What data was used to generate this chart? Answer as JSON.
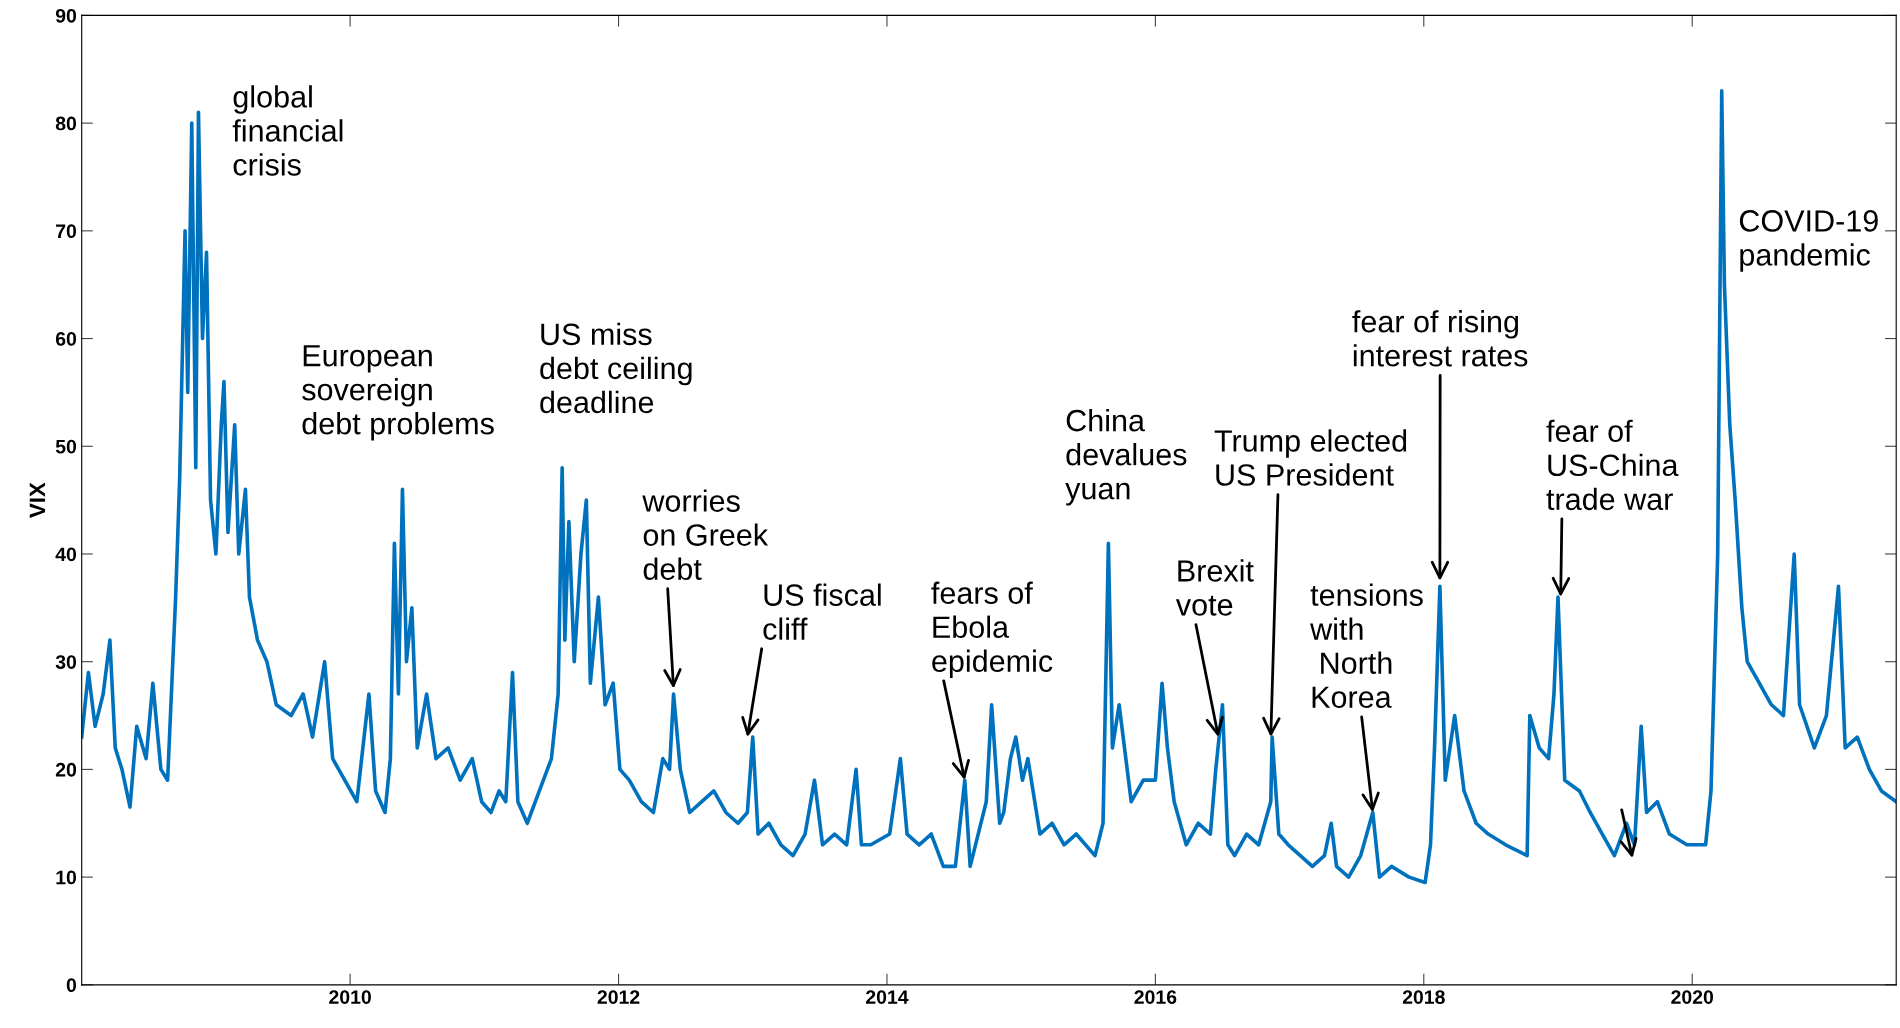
{
  "chart_data": {
    "type": "line",
    "ylabel": "VIX",
    "x": [
      2008.0,
      2008.05,
      2008.1,
      2008.16,
      2008.21,
      2008.25,
      2008.3,
      2008.36,
      2008.41,
      2008.48,
      2008.53,
      2008.59,
      2008.64,
      2008.7,
      2008.73,
      2008.77,
      2008.79,
      2008.82,
      2008.85,
      2008.87,
      2008.9,
      2008.93,
      2008.96,
      2009.0,
      2009.04,
      2009.06,
      2009.09,
      2009.14,
      2009.17,
      2009.22,
      2009.25,
      2009.31,
      2009.38,
      2009.45,
      2009.56,
      2009.65,
      2009.72,
      2009.81,
      2009.87,
      2009.96,
      2010.05,
      2010.14,
      2010.19,
      2010.26,
      2010.3,
      2010.33,
      2010.36,
      2010.39,
      2010.42,
      2010.46,
      2010.5,
      2010.57,
      2010.64,
      2010.73,
      2010.82,
      2010.91,
      2010.98,
      2011.05,
      2011.11,
      2011.16,
      2011.21,
      2011.25,
      2011.32,
      2011.41,
      2011.5,
      2011.55,
      2011.58,
      2011.6,
      2011.63,
      2011.67,
      2011.72,
      2011.76,
      2011.79,
      2011.85,
      2011.9,
      2011.96,
      2012.01,
      2012.08,
      2012.17,
      2012.26,
      2012.33,
      2012.38,
      2012.41,
      2012.46,
      2012.53,
      2012.62,
      2012.71,
      2012.8,
      2012.89,
      2012.96,
      2013.0,
      2013.04,
      2013.12,
      2013.21,
      2013.3,
      2013.39,
      2013.46,
      2013.52,
      2013.61,
      2013.7,
      2013.77,
      2013.81,
      2013.88,
      2014.02,
      2014.1,
      2014.15,
      2014.24,
      2014.33,
      2014.42,
      2014.51,
      2014.58,
      2014.62,
      2014.74,
      2014.78,
      2014.84,
      2014.87,
      2014.92,
      2014.96,
      2015.01,
      2015.05,
      2015.14,
      2015.23,
      2015.32,
      2015.41,
      2015.55,
      2015.61,
      2015.65,
      2015.68,
      2015.73,
      2015.82,
      2015.91,
      2016.0,
      2016.05,
      2016.09,
      2016.14,
      2016.23,
      2016.32,
      2016.41,
      2016.45,
      2016.5,
      2016.54,
      2016.59,
      2016.68,
      2016.77,
      2016.86,
      2016.87,
      2016.92,
      2016.99,
      2017.08,
      2017.17,
      2017.26,
      2017.31,
      2017.35,
      2017.44,
      2017.53,
      2017.62,
      2017.67,
      2017.76,
      2017.89,
      2018.01,
      2018.05,
      2018.08,
      2018.12,
      2018.16,
      2018.23,
      2018.3,
      2018.39,
      2018.48,
      2018.61,
      2018.77,
      2018.79,
      2018.86,
      2018.93,
      2018.97,
      2019.0,
      2019.05,
      2019.16,
      2019.24,
      2019.33,
      2019.42,
      2019.51,
      2019.57,
      2019.62,
      2019.66,
      2019.74,
      2019.83,
      2019.96,
      2020.1,
      2020.14,
      2020.19,
      2020.22,
      2020.24,
      2020.28,
      2020.32,
      2020.37,
      2020.41,
      2020.5,
      2020.59,
      2020.68,
      2020.76,
      2020.8,
      2020.91,
      2021.0,
      2021.09,
      2021.14,
      2021.23,
      2021.32,
      2021.41,
      2021.52
    ],
    "series": [
      {
        "color": "#0072bd",
        "values": [
          23,
          29,
          24,
          27,
          32,
          22,
          20,
          16.5,
          24,
          21,
          28,
          20,
          19,
          36,
          47,
          70,
          55,
          80,
          48,
          81,
          60,
          68,
          45,
          40,
          52,
          56,
          42,
          52,
          40,
          46,
          36,
          32,
          30,
          26,
          25,
          27,
          23,
          30,
          21,
          19,
          17,
          27,
          18,
          16,
          21,
          41,
          27,
          46,
          30,
          35,
          22,
          27,
          21,
          22,
          19,
          21,
          17,
          16,
          18,
          17,
          29,
          17,
          15,
          18,
          21,
          27,
          48,
          32,
          43,
          30,
          40,
          45,
          28,
          36,
          26,
          28,
          20,
          19,
          17,
          16,
          21,
          20,
          27,
          20,
          16,
          17,
          18,
          16,
          15,
          16,
          23,
          14,
          15,
          13,
          12,
          14,
          19,
          13,
          14,
          13,
          20,
          13,
          13,
          14,
          21,
          14,
          13,
          14,
          11,
          11,
          19,
          11,
          17,
          26,
          15,
          16,
          21,
          23,
          19,
          21,
          14,
          15,
          13,
          14,
          12,
          15,
          41,
          22,
          26,
          17,
          19,
          19,
          28,
          22,
          17,
          13,
          15,
          14,
          20,
          26,
          13,
          12,
          14,
          13,
          17,
          23,
          14,
          13,
          12,
          11,
          12,
          15,
          11,
          10,
          12,
          16,
          10,
          11,
          10,
          9.5,
          13,
          22,
          37,
          19,
          25,
          18,
          15,
          14,
          13,
          12,
          25,
          22,
          21,
          27,
          36,
          19,
          18,
          16,
          14,
          12,
          15,
          13,
          24,
          16,
          17,
          14,
          13,
          13,
          18,
          40,
          83,
          65,
          52,
          45,
          35,
          30,
          28,
          26,
          25,
          40,
          26,
          22,
          25,
          37,
          22,
          23,
          20,
          18,
          17
        ]
      }
    ],
    "xlim": [
      2008.0,
      2021.52
    ],
    "xticks": [
      2010,
      2012,
      2014,
      2016,
      2018,
      2020
    ],
    "ylim": [
      0,
      90
    ],
    "yticks": [
      0,
      10,
      20,
      30,
      40,
      50,
      60,
      70,
      80,
      90
    ],
    "grid": false,
    "legend": false,
    "line_style": "solid",
    "marker": "none",
    "annotations": [
      "global\nfinancial\ncrisis",
      "European\nsovereign\ndebt problems",
      "US miss\ndebt ceiling\ndeadline",
      {
        "text": "worries\non Greek\ndebt",
        "x": 2012.41,
        "y": 27.5
      },
      {
        "text": "US fiscal\ncliff",
        "x": 2012.96,
        "y": 23
      },
      {
        "text": "fears of\nEbola\nepidemic",
        "x": 2014.58,
        "y": 19
      },
      "China\ndevalues\nyuan",
      {
        "text": "Brexit\nvote",
        "x": 2016.47,
        "y": 23
      },
      {
        "text": "Trump elected\nUS President",
        "x": 2016.86,
        "y": 23
      },
      {
        "text": "tensions\nwith\n North\nKorea",
        "x": 2017.62,
        "y": 16
      },
      {
        "text": "fear of rising\ninterest rates",
        "x": 2018.12,
        "y": 37.5
      },
      {
        "text": "fear of\nUS-China\ntrade war",
        "x": 2019.02,
        "y": 36
      },
      "COVID-19\npandemic"
    ]
  }
}
